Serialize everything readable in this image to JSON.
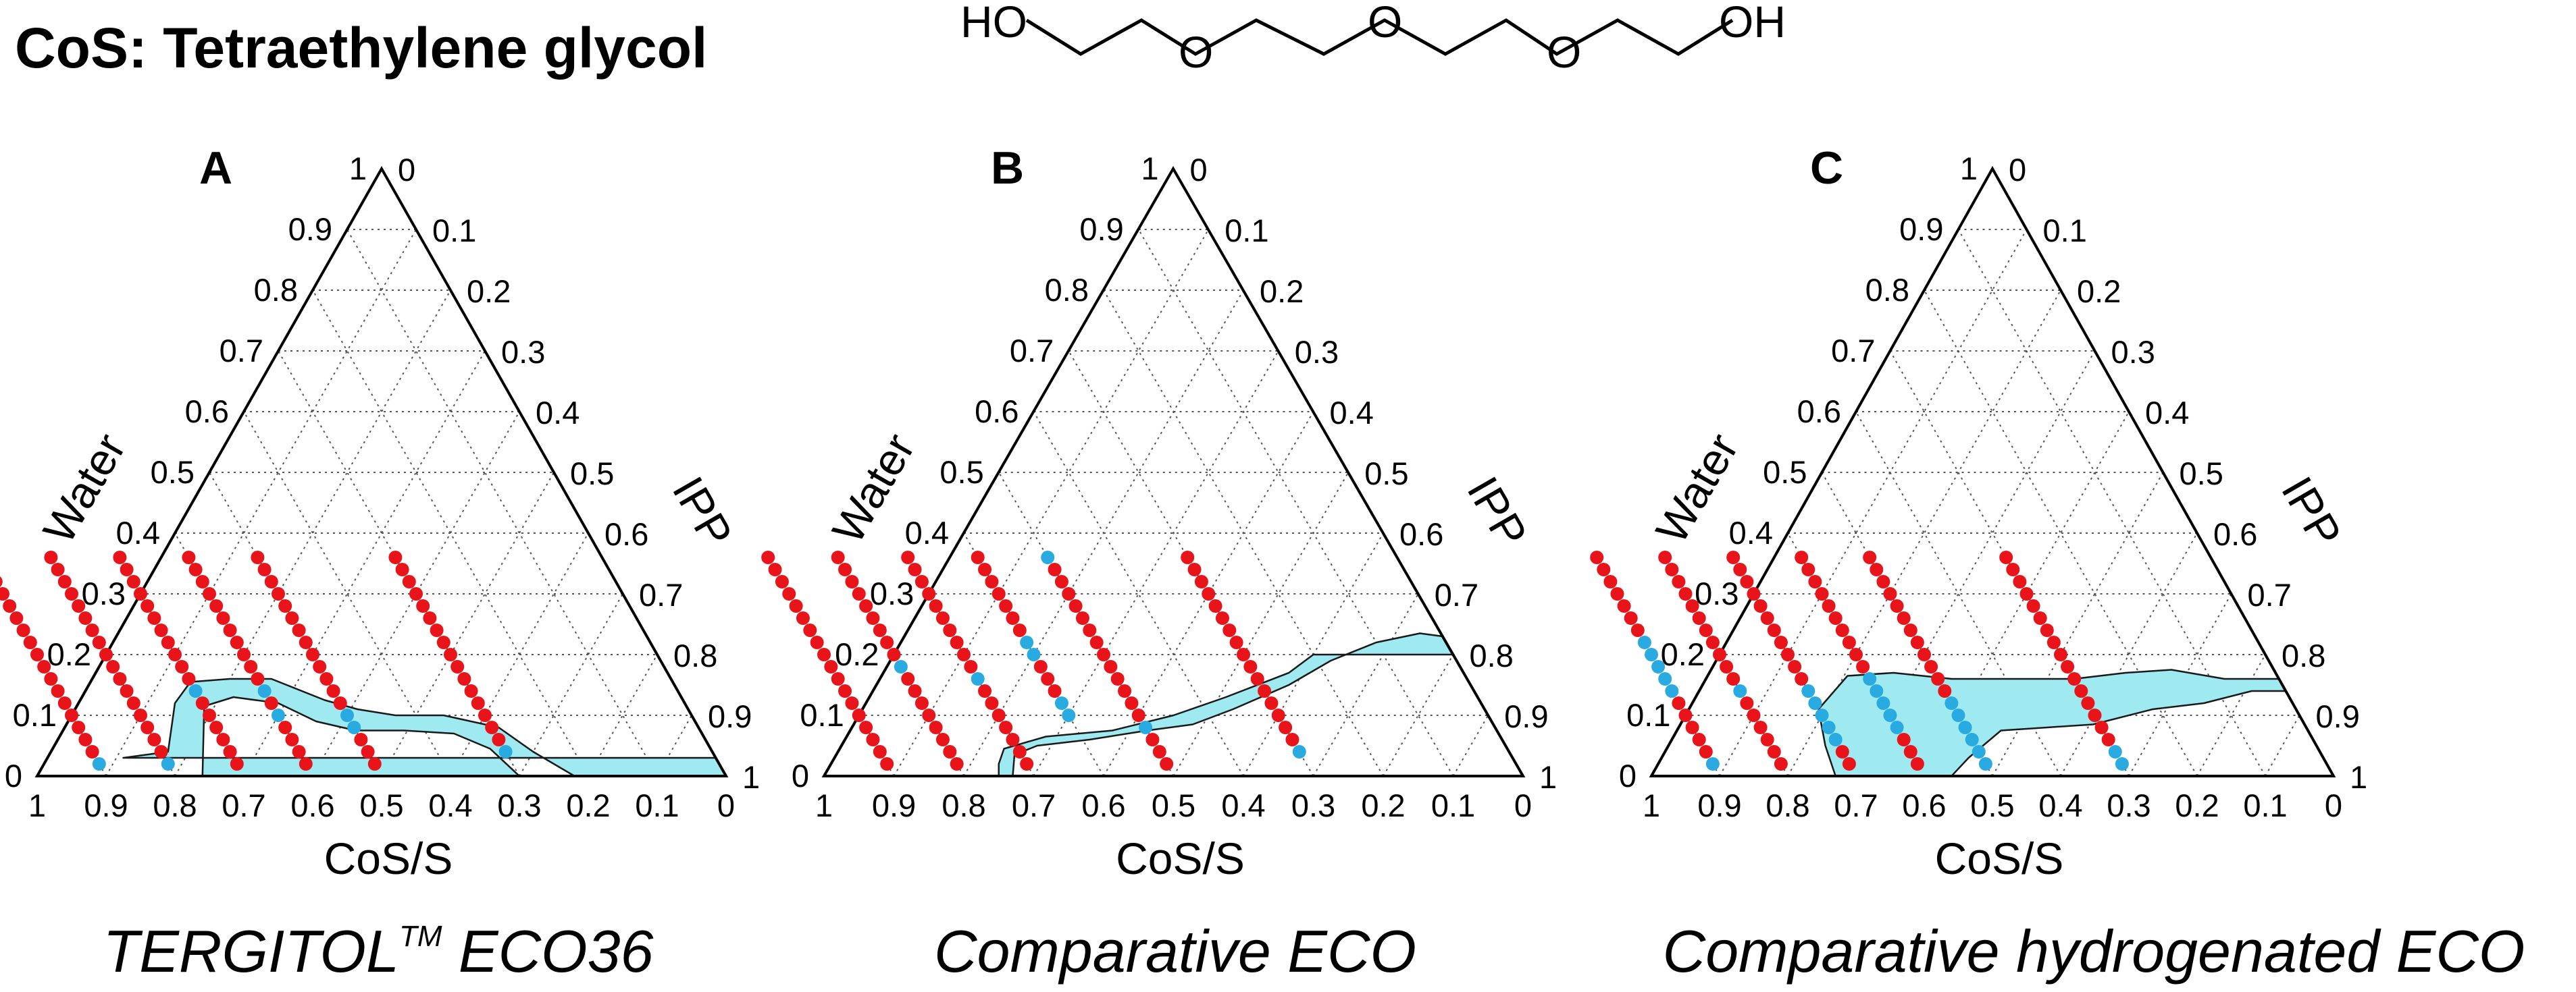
{
  "header": {
    "title": "CoS: Tetraethylene glycol"
  },
  "molecule": {
    "labels": [
      "HO",
      "O",
      "O",
      "O",
      "OH"
    ]
  },
  "colors": {
    "red_point": "#e8141a",
    "blue_point": "#29abe2",
    "region_fill": "#9eeaf0",
    "grid": "#555555"
  },
  "chart_data": [
    {
      "type": "scatter",
      "subtype": "ternary",
      "panel": "A",
      "caption": "TERGITOL",
      "caption_tm": "TM",
      "caption_suffix": " ECO36",
      "axes": {
        "bottom": "CoS/S",
        "left": "Water",
        "right": "IPP"
      },
      "ticks": {
        "bottom": [
          "1",
          "0.9",
          "0.8",
          "0.7",
          "0.6",
          "0.5",
          "0.4",
          "0.3",
          "0.2",
          "0.1",
          "0"
        ],
        "left": [
          "0",
          "0.1",
          "0.2",
          "0.3",
          "0.4",
          "0.5",
          "0.6",
          "0.7",
          "0.8",
          "0.9",
          "1"
        ],
        "right": [
          "0",
          "0.1",
          "0.2",
          "0.3",
          "0.4",
          "0.5",
          "0.6",
          "0.7",
          "0.8",
          "0.9",
          "1"
        ]
      },
      "series": [
        {
          "cos_s": 0.9,
          "water": [
            0.02,
            0.04,
            0.06,
            0.08,
            0.1,
            0.12,
            0.14,
            0.16,
            0.18,
            0.2,
            0.22,
            0.24,
            0.26,
            0.28,
            0.3,
            0.32,
            0.34,
            0.36
          ],
          "blue": [
            0.02
          ]
        },
        {
          "cos_s": 0.8,
          "water": [
            0.02,
            0.04,
            0.06,
            0.08,
            0.1,
            0.12,
            0.14,
            0.16,
            0.18,
            0.2,
            0.22,
            0.24,
            0.26,
            0.28,
            0.3,
            0.32,
            0.34,
            0.36
          ],
          "blue": [
            0.02
          ]
        },
        {
          "cos_s": 0.7,
          "water": [
            0.02,
            0.04,
            0.06,
            0.08,
            0.1,
            0.12,
            0.14,
            0.16,
            0.18,
            0.2,
            0.22,
            0.24,
            0.26,
            0.28,
            0.3,
            0.32,
            0.34,
            0.36
          ],
          "blue": [
            0.14
          ]
        },
        {
          "cos_s": 0.6,
          "water": [
            0.02,
            0.04,
            0.06,
            0.08,
            0.1,
            0.12,
            0.14,
            0.16,
            0.18,
            0.2,
            0.22,
            0.24,
            0.26,
            0.28,
            0.3,
            0.32,
            0.34,
            0.36
          ],
          "blue": [
            0.1,
            0.14
          ]
        },
        {
          "cos_s": 0.5,
          "water": [
            0.02,
            0.04,
            0.06,
            0.08,
            0.1,
            0.12,
            0.14,
            0.16,
            0.18,
            0.2,
            0.22,
            0.24,
            0.26,
            0.28,
            0.3,
            0.32,
            0.34,
            0.36
          ],
          "blue": [
            0.08,
            0.1
          ]
        },
        {
          "cos_s": 0.3,
          "water": [
            0.04,
            0.06,
            0.08,
            0.1,
            0.12,
            0.14,
            0.16,
            0.18,
            0.2,
            0.22,
            0.24,
            0.26,
            0.28,
            0.3,
            0.32,
            0.34,
            0.36
          ],
          "blue": [
            0.04
          ]
        }
      ],
      "region": [
        [
          0.0,
          0.0
        ],
        [
          0.0,
          0.03
        ],
        [
          0.86,
          0.03
        ],
        [
          0.79,
          0.04
        ],
        [
          0.74,
          0.12
        ],
        [
          0.7,
          0.155
        ],
        [
          0.64,
          0.16
        ],
        [
          0.58,
          0.16
        ],
        [
          0.52,
          0.125
        ],
        [
          0.48,
          0.11
        ],
        [
          0.43,
          0.1
        ],
        [
          0.36,
          0.1
        ],
        [
          0.29,
          0.08
        ],
        [
          0.26,
          0.04
        ],
        [
          0.22,
          0.0
        ],
        [
          0.3,
          0.0
        ],
        [
          0.32,
          0.045
        ],
        [
          0.36,
          0.07
        ],
        [
          0.43,
          0.075
        ],
        [
          0.5,
          0.075
        ],
        [
          0.55,
          0.09
        ],
        [
          0.59,
          0.12
        ],
        [
          0.65,
          0.13
        ],
        [
          0.7,
          0.115
        ],
        [
          0.76,
          0.0
        ],
        [
          0.8,
          0.0
        ],
        [
          0.84,
          0.0
        ],
        [
          0.86,
          0.0
        ]
      ]
    },
    {
      "type": "scatter",
      "subtype": "ternary",
      "panel": "B",
      "caption": "Comparative ECO",
      "caption_tm": "",
      "caption_suffix": "",
      "axes": {
        "bottom": "CoS/S",
        "left": "Water",
        "right": "IPP"
      },
      "ticks": {
        "bottom": [
          "1",
          "0.9",
          "0.8",
          "0.7",
          "0.6",
          "0.5",
          "0.4",
          "0.3",
          "0.2",
          "0.1",
          "0"
        ],
        "left": [
          "0",
          "0.1",
          "0.2",
          "0.3",
          "0.4",
          "0.5",
          "0.6",
          "0.7",
          "0.8",
          "0.9",
          "1"
        ],
        "right": [
          "0",
          "0.1",
          "0.2",
          "0.3",
          "0.4",
          "0.5",
          "0.6",
          "0.7",
          "0.8",
          "0.9",
          "1"
        ]
      },
      "series": [
        {
          "cos_s": 0.9,
          "water": [
            0.02,
            0.04,
            0.06,
            0.08,
            0.1,
            0.12,
            0.14,
            0.16,
            0.18,
            0.2,
            0.22,
            0.24,
            0.26,
            0.28,
            0.3,
            0.32,
            0.34,
            0.36
          ],
          "blue": []
        },
        {
          "cos_s": 0.8,
          "water": [
            0.02,
            0.04,
            0.06,
            0.08,
            0.1,
            0.12,
            0.14,
            0.16,
            0.18,
            0.2,
            0.22,
            0.24,
            0.26,
            0.28,
            0.3,
            0.32,
            0.34,
            0.36
          ],
          "blue": [
            0.18
          ]
        },
        {
          "cos_s": 0.7,
          "water": [
            0.02,
            0.04,
            0.06,
            0.08,
            0.1,
            0.12,
            0.14,
            0.16,
            0.18,
            0.2,
            0.22,
            0.24,
            0.26,
            0.28,
            0.3,
            0.32,
            0.34,
            0.36
          ],
          "blue": [
            0.16
          ]
        },
        {
          "cos_s": 0.6,
          "water": [
            0.1,
            0.12,
            0.14,
            0.16,
            0.18,
            0.2,
            0.22,
            0.24,
            0.26,
            0.28,
            0.3,
            0.32,
            0.34,
            0.36
          ],
          "blue": [
            0.1,
            0.12,
            0.2,
            0.22
          ]
        },
        {
          "cos_s": 0.5,
          "water": [
            0.02,
            0.04,
            0.06,
            0.08,
            0.1,
            0.12,
            0.14,
            0.16,
            0.18,
            0.2,
            0.22,
            0.24,
            0.26,
            0.28,
            0.3,
            0.32,
            0.34,
            0.36
          ],
          "blue": [
            0.08,
            0.36
          ]
        },
        {
          "cos_s": 0.3,
          "water": [
            0.04,
            0.06,
            0.08,
            0.1,
            0.12,
            0.14,
            0.16,
            0.18,
            0.2,
            0.22,
            0.24,
            0.26,
            0.28,
            0.3,
            0.32,
            0.34,
            0.36
          ],
          "blue": [
            0.04
          ]
        }
      ],
      "region": [
        [
          0.0,
          0.23
        ],
        [
          0.0,
          0.2
        ],
        [
          0.2,
          0.2
        ],
        [
          0.25,
          0.17
        ],
        [
          0.36,
          0.13
        ],
        [
          0.45,
          0.1
        ],
        [
          0.55,
          0.075
        ],
        [
          0.65,
          0.065
        ],
        [
          0.72,
          0.045
        ],
        [
          0.74,
          0.02
        ],
        [
          0.75,
          0.0
        ],
        [
          0.73,
          0.0
        ],
        [
          0.71,
          0.035
        ],
        [
          0.67,
          0.05
        ],
        [
          0.59,
          0.06
        ],
        [
          0.5,
          0.075
        ],
        [
          0.43,
          0.085
        ],
        [
          0.36,
          0.11
        ],
        [
          0.26,
          0.15
        ],
        [
          0.18,
          0.19
        ],
        [
          0.1,
          0.22
        ],
        [
          0.03,
          0.235
        ]
      ]
    },
    {
      "type": "scatter",
      "subtype": "ternary",
      "panel": "C",
      "caption": "Comparative hydrogenated ECO",
      "caption_tm": "",
      "caption_suffix": "",
      "axes": {
        "bottom": "CoS/S",
        "left": "Water",
        "right": "IPP"
      },
      "ticks": {
        "bottom": [
          "1",
          "0.9",
          "0.8",
          "0.7",
          "0.6",
          "0.5",
          "0.4",
          "0.3",
          "0.2",
          "0.1",
          "0"
        ],
        "left": [
          "0",
          "0.1",
          "0.2",
          "0.3",
          "0.4",
          "0.5",
          "0.6",
          "0.7",
          "0.8",
          "0.9",
          "1"
        ],
        "right": [
          "0",
          "0.1",
          "0.2",
          "0.3",
          "0.4",
          "0.5",
          "0.6",
          "0.7",
          "0.8",
          "0.9",
          "1"
        ]
      },
      "series": [
        {
          "cos_s": 0.9,
          "water": [
            0.02,
            0.04,
            0.06,
            0.08,
            0.1,
            0.12,
            0.14,
            0.16,
            0.18,
            0.2,
            0.22,
            0.24,
            0.26,
            0.28,
            0.3,
            0.32,
            0.34,
            0.36
          ],
          "blue": [
            0.02,
            0.14,
            0.16,
            0.18,
            0.2,
            0.22
          ]
        },
        {
          "cos_s": 0.8,
          "water": [
            0.02,
            0.04,
            0.06,
            0.08,
            0.1,
            0.12,
            0.14,
            0.16,
            0.18,
            0.2,
            0.22,
            0.24,
            0.26,
            0.28,
            0.3,
            0.32,
            0.34,
            0.36
          ],
          "blue": [
            0.14
          ]
        },
        {
          "cos_s": 0.7,
          "water": [
            0.02,
            0.04,
            0.06,
            0.08,
            0.1,
            0.12,
            0.14,
            0.16,
            0.18,
            0.2,
            0.22,
            0.24,
            0.26,
            0.28,
            0.3,
            0.32,
            0.34,
            0.36
          ],
          "blue": [
            0.06,
            0.08,
            0.1,
            0.12,
            0.14
          ]
        },
        {
          "cos_s": 0.6,
          "water": [
            0.02,
            0.04,
            0.06,
            0.08,
            0.1,
            0.12,
            0.14,
            0.16,
            0.18,
            0.2,
            0.22,
            0.24,
            0.26,
            0.28,
            0.3,
            0.32,
            0.34,
            0.36
          ],
          "blue": [
            0.08,
            0.1,
            0.12,
            0.14,
            0.16
          ]
        },
        {
          "cos_s": 0.5,
          "water": [
            0.02,
            0.04,
            0.06,
            0.08,
            0.1,
            0.12,
            0.14,
            0.16,
            0.18,
            0.2,
            0.22,
            0.24,
            0.26,
            0.28,
            0.3,
            0.32,
            0.34,
            0.36
          ],
          "blue": [
            0.02,
            0.04,
            0.06,
            0.08,
            0.1,
            0.12
          ]
        },
        {
          "cos_s": 0.3,
          "water": [
            0.02,
            0.04,
            0.06,
            0.08,
            0.1,
            0.12,
            0.14,
            0.16,
            0.18,
            0.2,
            0.22,
            0.24,
            0.26,
            0.28,
            0.3,
            0.32,
            0.34,
            0.36
          ],
          "blue": [
            0.02,
            0.04
          ]
        }
      ],
      "region": [
        [
          0.0,
          0.16
        ],
        [
          0.08,
          0.16
        ],
        [
          0.15,
          0.175
        ],
        [
          0.22,
          0.17
        ],
        [
          0.3,
          0.16
        ],
        [
          0.38,
          0.16
        ],
        [
          0.48,
          0.16
        ],
        [
          0.56,
          0.17
        ],
        [
          0.63,
          0.165
        ],
        [
          0.7,
          0.11
        ],
        [
          0.72,
          0.05
        ],
        [
          0.73,
          0.0
        ],
        [
          0.56,
          0.0
        ],
        [
          0.52,
          0.03
        ],
        [
          0.45,
          0.075
        ],
        [
          0.38,
          0.08
        ],
        [
          0.31,
          0.085
        ],
        [
          0.21,
          0.11
        ],
        [
          0.13,
          0.12
        ],
        [
          0.05,
          0.14
        ],
        [
          0.0,
          0.14
        ]
      ]
    }
  ]
}
